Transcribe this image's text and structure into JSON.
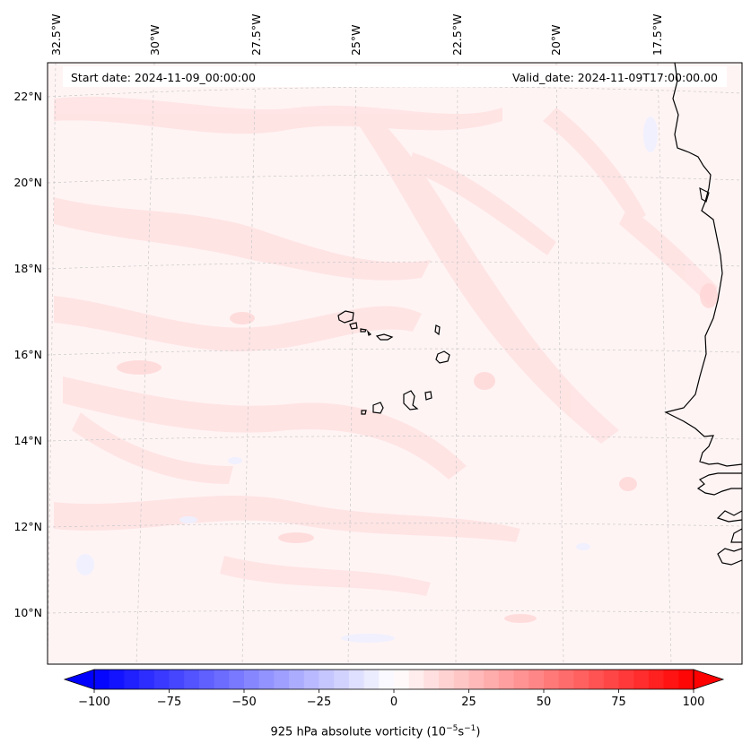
{
  "header": {
    "start_date": "Start date: 2024-11-09_00:00:00",
    "valid_date": "Valid_date: 2024-11-09T17:00:00.00"
  },
  "map": {
    "variable": "925 hPa absolute vorticity",
    "lon_labels": [
      "32.5°W",
      "30°W",
      "27.5°W",
      "25°W",
      "22.5°W",
      "20°W",
      "17.5°W"
    ],
    "lat_labels": [
      "22°N",
      "20°N",
      "18°N",
      "16°N",
      "14°N",
      "12°N",
      "10°N"
    ]
  },
  "colorbar": {
    "ticks": [
      "−100",
      "−75",
      "−50",
      "−25",
      "0",
      "25",
      "50",
      "75",
      "100"
    ],
    "min": -100,
    "max": 100,
    "title_prefix": "925 hPa absolute vorticity (10",
    "title_exp1": "−5",
    "title_mid": "s",
    "title_exp2": "−1",
    "title_suffix": ")",
    "cmap_start": "#0000ff",
    "cmap_mid": "#ffffff",
    "cmap_end": "#ff0000"
  },
  "colors": {
    "background_field": "#fff4f4",
    "positive_patch": "#ffe4e4",
    "negative_patch": "#eef0ff",
    "coastline": "#000000",
    "gridline": "#cfcfcf"
  }
}
